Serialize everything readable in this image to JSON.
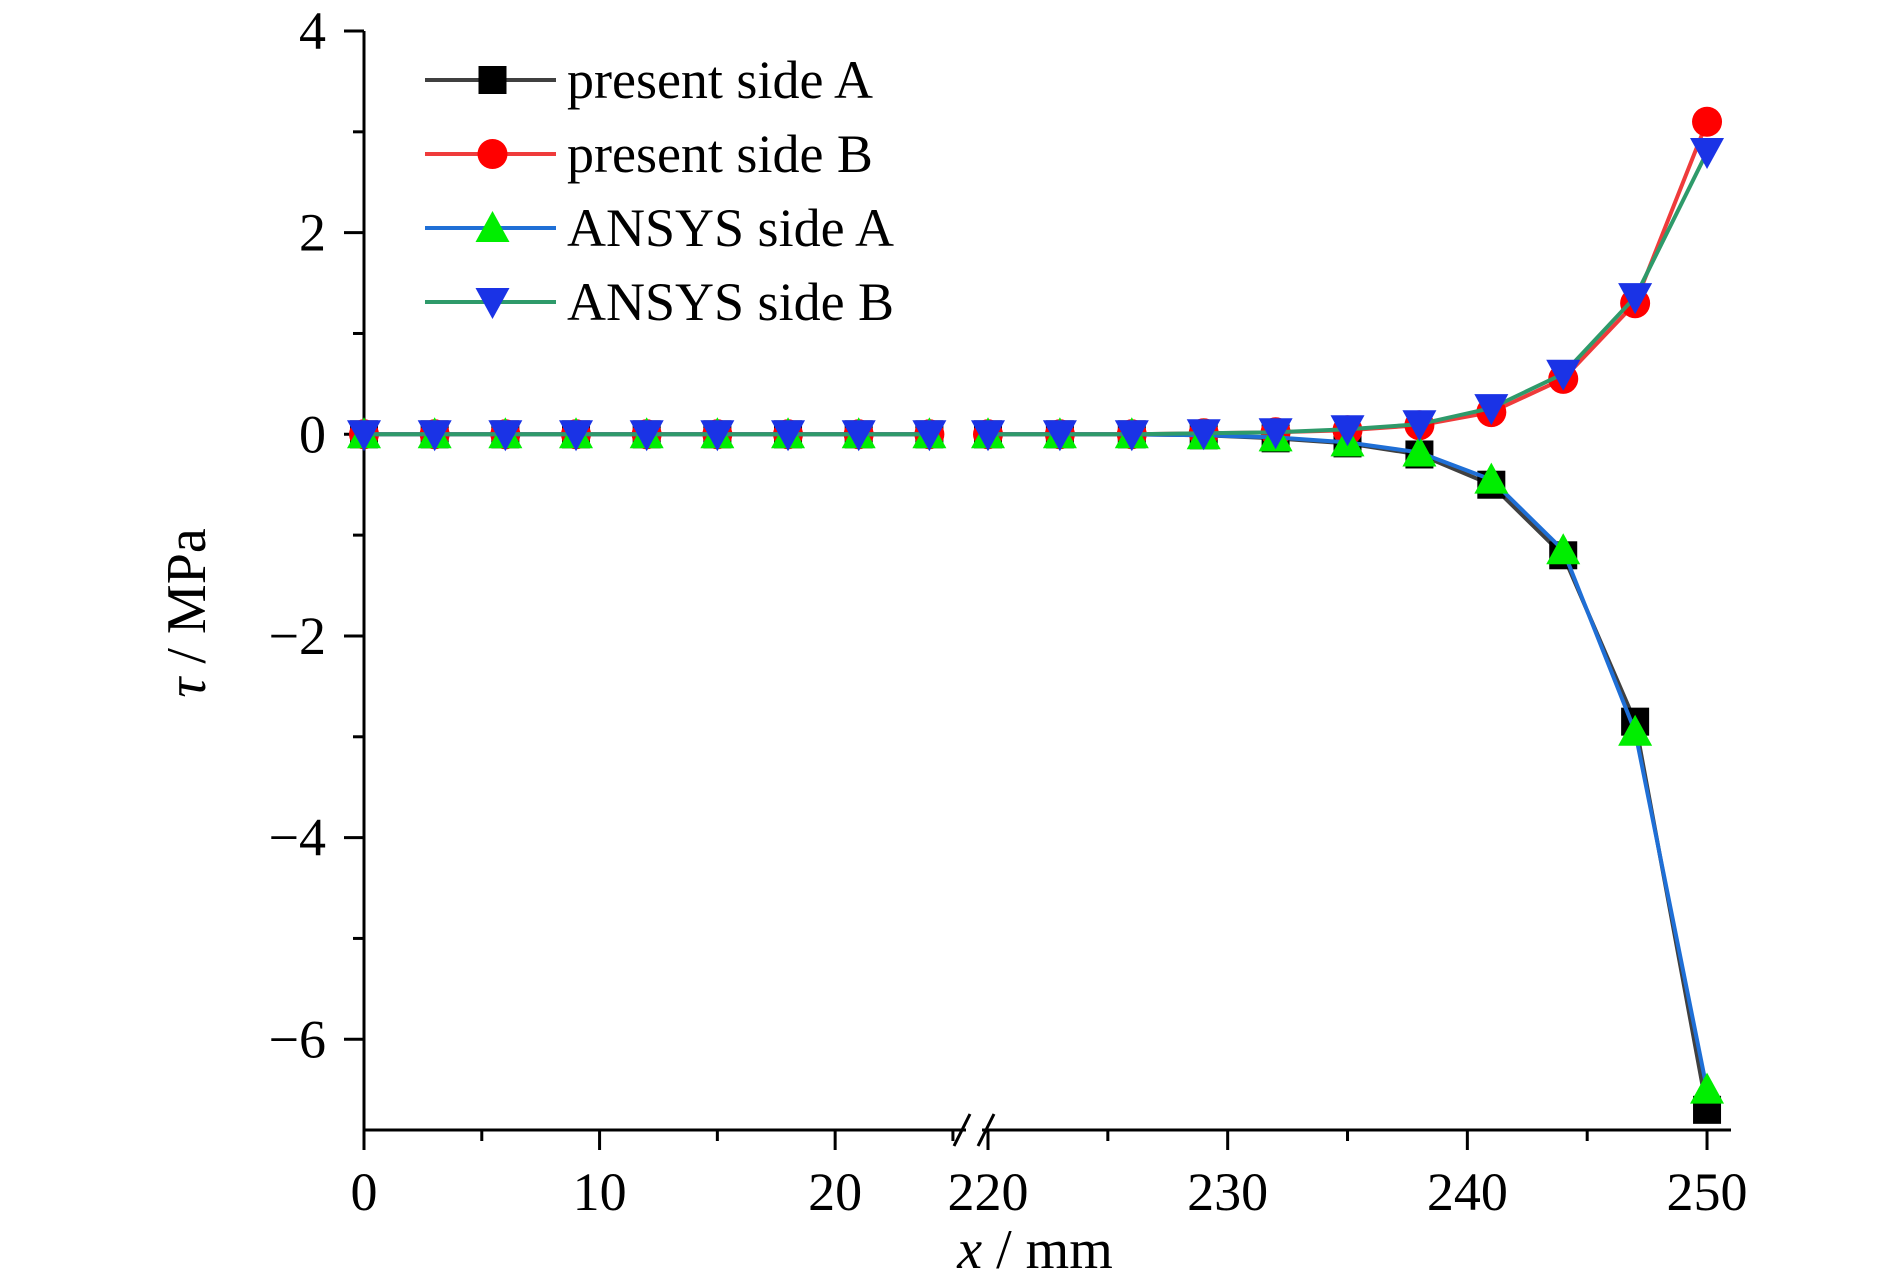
{
  "chart_data": {
    "type": "line",
    "xlabel": {
      "symbol": "x",
      "unit": " / mm"
    },
    "ylabel": {
      "symbol": "τ",
      "unit": " / MPa"
    },
    "ylim": [
      -6.9,
      4
    ],
    "y_ticks": [
      4,
      2,
      0,
      -2,
      -4,
      -6
    ],
    "y_tick_labels": [
      "4",
      "2",
      "0",
      "−2",
      "−4",
      "−6"
    ],
    "x_axis_break": true,
    "x_segments": [
      {
        "range": [
          0,
          25.3
        ],
        "ticks": [
          0,
          10,
          20
        ],
        "tick_labels": [
          "0",
          "10",
          "20"
        ]
      },
      {
        "range": [
          220,
          251
        ],
        "ticks": [
          220,
          230,
          240,
          250
        ],
        "tick_labels": [
          "220",
          "230",
          "240",
          "250"
        ]
      }
    ],
    "grid": false,
    "legend_position": "top-left",
    "series": [
      {
        "name": "present side A",
        "color": "#404040",
        "marker": "square",
        "marker_color": "#000000",
        "x": [
          0,
          3,
          6,
          9,
          12,
          15,
          18,
          21,
          24,
          220,
          223,
          226,
          229,
          232,
          235,
          238,
          241,
          244,
          247,
          250
        ],
        "y": [
          0,
          0,
          0,
          0,
          0,
          0,
          0,
          0,
          0,
          0,
          0,
          0,
          -0.01,
          -0.04,
          -0.09,
          -0.2,
          -0.5,
          -1.2,
          -2.85,
          -6.7
        ]
      },
      {
        "name": "present side B",
        "color": "#ef3b3b",
        "marker": "circle",
        "marker_color": "#ff0000",
        "x": [
          0,
          3,
          6,
          9,
          12,
          15,
          18,
          21,
          24,
          220,
          223,
          226,
          229,
          232,
          235,
          238,
          241,
          244,
          247,
          250
        ],
        "y": [
          0,
          0,
          0,
          0,
          0,
          0,
          0,
          0,
          0,
          0,
          0,
          0,
          0.01,
          0.02,
          0.04,
          0.09,
          0.22,
          0.55,
          1.3,
          3.1
        ]
      },
      {
        "name": "ANSYS side A",
        "color": "#1f6fd6",
        "marker": "triangle-up",
        "marker_color": "#00ee00",
        "x": [
          0,
          3,
          6,
          9,
          12,
          15,
          18,
          21,
          24,
          220,
          223,
          226,
          229,
          232,
          235,
          238,
          241,
          244,
          247,
          250
        ],
        "y": [
          0,
          0,
          0,
          0,
          0,
          0,
          0,
          0,
          0,
          0,
          0,
          0,
          -0.01,
          -0.03,
          -0.08,
          -0.18,
          -0.45,
          -1.15,
          -2.95,
          -6.5
        ]
      },
      {
        "name": "ANSYS side B",
        "color": "#2e9a6a",
        "marker": "triangle-down",
        "marker_color": "#1a33e6",
        "x": [
          0,
          3,
          6,
          9,
          12,
          15,
          18,
          21,
          24,
          220,
          223,
          226,
          229,
          232,
          235,
          238,
          241,
          244,
          247,
          250
        ],
        "y": [
          0,
          0,
          0,
          0,
          0,
          0,
          0,
          0,
          0,
          0,
          0,
          0,
          0.01,
          0.02,
          0.05,
          0.1,
          0.26,
          0.6,
          1.36,
          2.8
        ]
      }
    ]
  }
}
